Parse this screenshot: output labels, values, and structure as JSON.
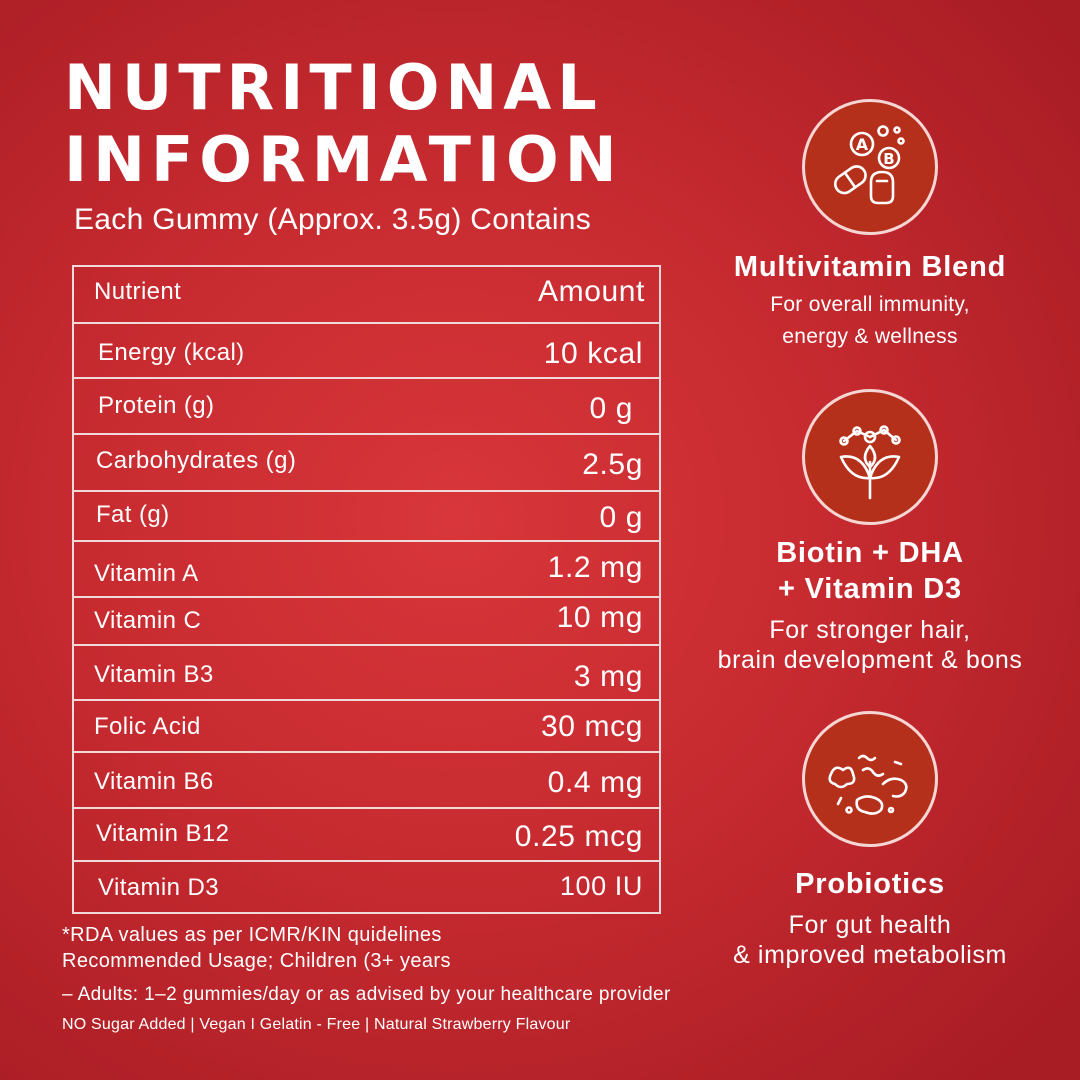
{
  "title_line1": "NUTRITIONAL",
  "title_line2": "INFORMATION",
  "subtitle": "Each Gummy (Approx. 3.5g) Contains",
  "table": {
    "header": {
      "nutrient": "Nutrient",
      "amount": "Amount"
    },
    "rows": [
      {
        "nutrient": "Energy (kcal)",
        "amount": "10 kcal"
      },
      {
        "nutrient": "Protein (g)",
        "amount": "0 g"
      },
      {
        "nutrient": "Carbohydrates (g)",
        "amount": "2.5g"
      },
      {
        "nutrient": "Fat (g)",
        "amount": "0 g"
      },
      {
        "nutrient": "Vitamin A",
        "amount": "1.2 mg"
      },
      {
        "nutrient": "Vitamin C",
        "amount": "10 mg"
      },
      {
        "nutrient": "Vitamin B3",
        "amount": "3 mg"
      },
      {
        "nutrient": "Folic Acid",
        "amount": "30 mcg"
      },
      {
        "nutrient": "Vitamin B6",
        "amount": "0.4 mg"
      },
      {
        "nutrient": "Vitamin B12",
        "amount": "0.25 mcg"
      },
      {
        "nutrient": "Vitamin D3",
        "amount": "100 IU"
      }
    ]
  },
  "footnotes": {
    "rda": "*RDA values as per ICMR/KIN quidelines",
    "usage": "Recommended Usage; Children (3+ years",
    "adults": "– Adults: 1–2 gummies/day or as advised by your healthcare provider",
    "claims": "NO Sugar Added | Vegan I Gelatin - Free | Natural Strawberry Flavour"
  },
  "features": [
    {
      "icon": "vitamin-capsule-icon",
      "title": [
        "Multivitamin Blend"
      ],
      "desc": [
        "For overall immunity,",
        "energy & wellness"
      ]
    },
    {
      "icon": "molecule-plant-icon",
      "title": [
        "Biotin + DHA",
        "+ Vitamin D3"
      ],
      "desc": [
        "For stronger hair,",
        "brain development & bons"
      ]
    },
    {
      "icon": "probiotic-bacteria-icon",
      "title": [
        "Probiotics"
      ],
      "desc": [
        "For gut health",
        "& improved metabolism"
      ]
    }
  ],
  "colors": {
    "background": "#c72b30",
    "icon_circle": "#b5301b",
    "text": "#ffffff"
  }
}
